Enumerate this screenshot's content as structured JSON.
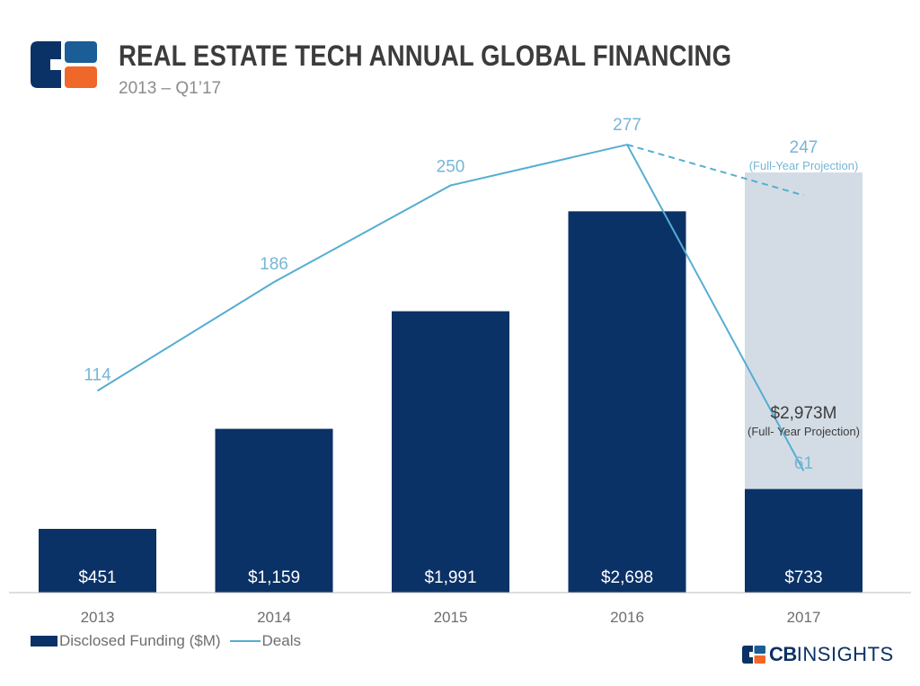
{
  "header": {
    "title": "REAL ESTATE TECH ANNUAL GLOBAL FINANCING",
    "subtitle": "2013 – Q1’17",
    "logo_icon": "cb-insights-logo-icon"
  },
  "colors": {
    "bar": "#0b3266",
    "projection_bar": "#d3dce5",
    "deals_line": "#55add2",
    "axis_text": "#6e6e6e",
    "deal_label": "#76b6d6"
  },
  "chart_data": {
    "type": "bar",
    "categories": [
      "2013",
      "2014",
      "2015",
      "2016",
      "2017"
    ],
    "series": [
      {
        "name": "Disclosed Funding ($M)",
        "type": "bar",
        "values": [
          451,
          1159,
          1991,
          2698,
          733
        ],
        "labels": [
          "$451",
          "$1,159",
          "$1,991",
          "$2,698",
          "$733"
        ]
      },
      {
        "name": "Deals",
        "type": "line",
        "values": [
          114,
          186,
          250,
          277,
          61
        ],
        "labels": [
          "114",
          "186",
          "250",
          "277",
          "61"
        ]
      }
    ],
    "projection": {
      "category": "2017",
      "funding_value": 2973,
      "funding_label": "$2,973M",
      "funding_note": "(Full- Year Projection)",
      "deals_value": 247,
      "deals_label": "247",
      "deals_note": "(Full-Year Projection)"
    },
    "funding_axis_range": [
      0,
      3000
    ],
    "deals_axis_range": [
      0,
      300
    ],
    "grid": false,
    "legend_position": "bottom-left"
  },
  "legend": {
    "funding_label": "Disclosed Funding ($M)",
    "deals_label": "Deals"
  },
  "brand": {
    "bold": "CB",
    "light": "INSIGHTS"
  }
}
